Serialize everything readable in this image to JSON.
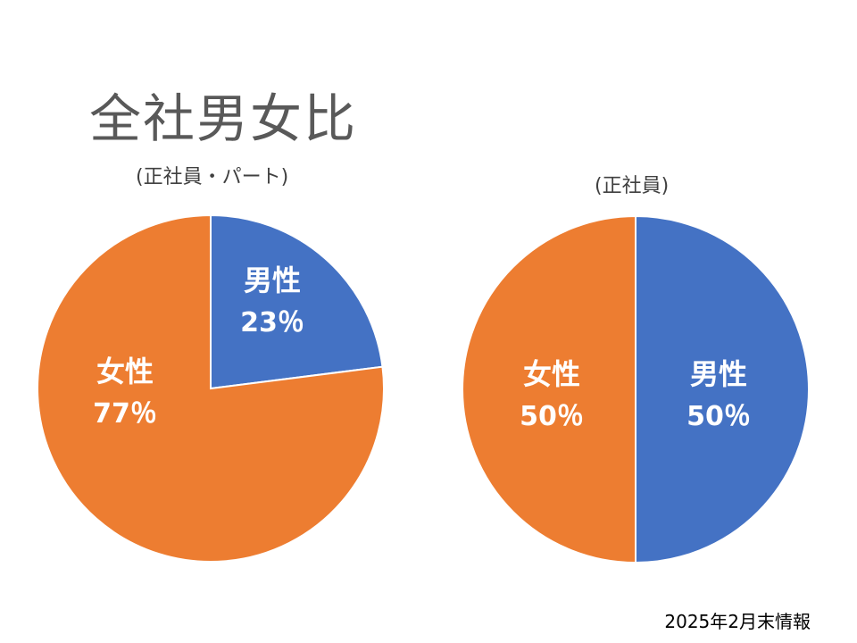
{
  "page": {
    "title": "全社男女比",
    "footnote": "2025年2月末情報"
  },
  "colors": {
    "male": "#4472C4",
    "female": "#ED7D31",
    "border": "#ffffff"
  },
  "chart_data": [
    {
      "type": "pie",
      "subtitle": "(正社員・パート)",
      "slices": [
        {
          "name": "男性",
          "value": 23,
          "label": "23％",
          "color": "#4472C4"
        },
        {
          "name": "女性",
          "value": 77,
          "label": "77％",
          "color": "#ED7D31"
        }
      ]
    },
    {
      "type": "pie",
      "subtitle": "(正社員)",
      "slices": [
        {
          "name": "男性",
          "value": 50,
          "label": "50％",
          "color": "#4472C4"
        },
        {
          "name": "女性",
          "value": 50,
          "label": "50％",
          "color": "#ED7D31"
        }
      ]
    }
  ]
}
